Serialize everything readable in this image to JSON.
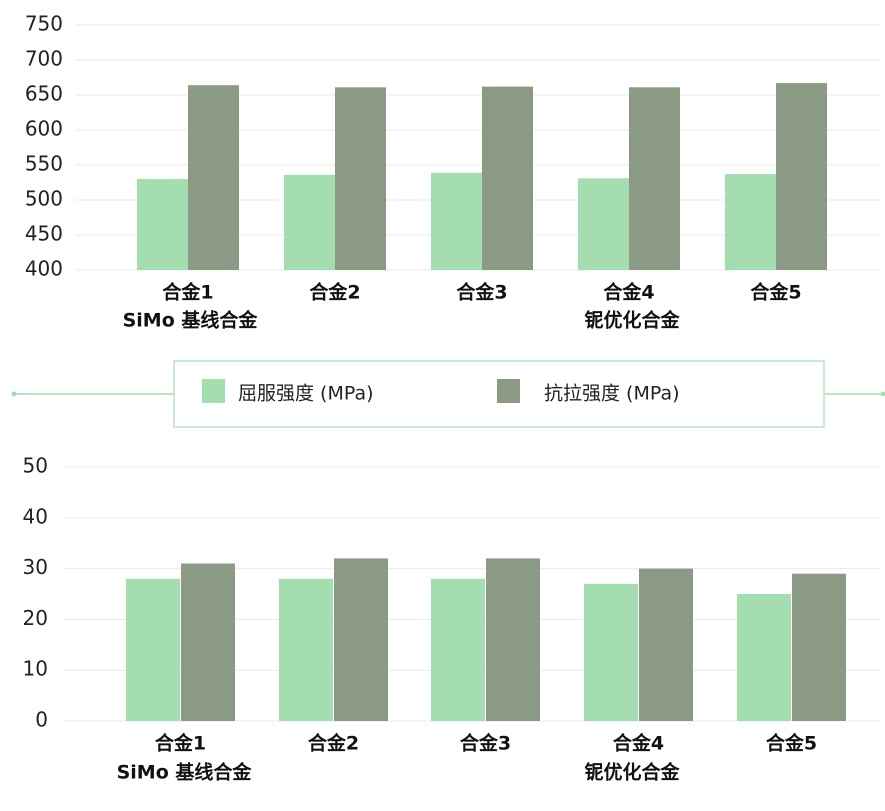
{
  "colors": {
    "yield": "#a4ddb0",
    "tensile": "#8a9a84",
    "legend_border": "#b9e3c3",
    "connector": "#a8dcb4"
  },
  "legend": {
    "items": [
      {
        "label": "屈服强度 (MPa)",
        "color": "#a4ddb0"
      },
      {
        "label": "抗拉强度 (MPa)",
        "color": "#8a9a84"
      }
    ]
  },
  "chart_data": [
    {
      "type": "bar",
      "categories": [
        "合金1",
        "合金2",
        "合金3",
        "合金4",
        "合金5"
      ],
      "group_labels": [
        "SiMo 基线合金",
        "铌优化合金"
      ],
      "series": [
        {
          "name": "屈服强度 (MPa)",
          "values": [
            530,
            536,
            539,
            531,
            537
          ]
        },
        {
          "name": "抗拉强度 (MPa)",
          "values": [
            664,
            661,
            662,
            661,
            667
          ]
        }
      ],
      "yticks": [
        400,
        450,
        500,
        550,
        600,
        650,
        700,
        750
      ],
      "ylim": [
        400,
        750
      ],
      "grid": true
    },
    {
      "type": "bar",
      "categories": [
        "合金1",
        "合金2",
        "合金3",
        "合金4",
        "合金5"
      ],
      "group_labels": [
        "SiMo 基线合金",
        "铌优化合金"
      ],
      "series": [
        {
          "name": "屈服强度 (MPa)",
          "values": [
            28,
            28,
            28,
            27,
            25
          ]
        },
        {
          "name": "抗拉强度 (MPa)",
          "values": [
            31,
            32,
            32,
            30,
            29
          ]
        }
      ],
      "yticks": [
        0,
        10,
        20,
        30,
        40,
        50
      ],
      "ylim": [
        0,
        50
      ],
      "grid": true
    }
  ]
}
